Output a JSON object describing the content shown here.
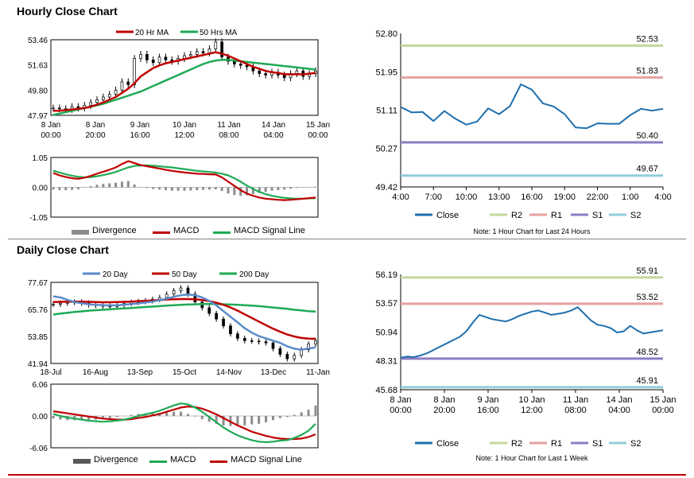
{
  "sections": {
    "hourly_title": "Hourly Close Chart",
    "daily_title": "Daily Close Chart"
  },
  "colors": {
    "close": "#1f6fad",
    "ma_red": "#c00000",
    "ma_green": "#1faa55",
    "ma_blue": "#5b8bc9",
    "r2": "#c4d79b",
    "r1": "#e6a1a1",
    "s1": "#8e7cc3",
    "s2": "#92cddc",
    "divergence": "#8c8c8c",
    "candle": "#000000"
  },
  "chart_data": [
    {
      "id": "hourly_price",
      "type": "line",
      "title": "",
      "legend": [
        "20 Hr MA",
        "50 Hrs MA"
      ],
      "yticks": [
        "53.46",
        "51.63",
        "49.80",
        "47.97"
      ],
      "ylim": [
        47.97,
        53.46
      ],
      "xticks": [
        [
          "8 Jan",
          "00:00"
        ],
        [
          "8 Jan",
          "20:00"
        ],
        [
          "9 Jan",
          "16:00"
        ],
        [
          "10 Jan",
          "12:00"
        ],
        [
          "11 Jan",
          "08:00"
        ],
        [
          "14 Jan",
          "04:00"
        ],
        [
          "15 Jan",
          "00:00"
        ]
      ],
      "price": [
        48.5,
        48.45,
        48.4,
        48.6,
        48.5,
        48.7,
        48.9,
        49.1,
        49.3,
        49.5,
        49.8,
        50.4,
        50.2,
        52.1,
        52.4,
        52.0,
        51.8,
        52.2,
        52.0,
        51.9,
        52.1,
        52.3,
        52.4,
        52.6,
        52.5,
        52.8,
        53.3,
        52.2,
        51.9,
        51.7,
        51.6,
        51.5,
        51.2,
        51.0,
        50.9,
        51.1,
        50.9,
        50.7,
        51.0,
        51.2,
        50.8,
        51.0,
        51.2
      ],
      "series": [
        {
          "name": "20 Hr MA",
          "values": [
            48.3,
            48.3,
            48.35,
            48.4,
            48.45,
            48.5,
            48.6,
            48.75,
            48.9,
            49.1,
            49.3,
            49.6,
            49.9,
            50.3,
            50.8,
            51.1,
            51.4,
            51.6,
            51.75,
            51.85,
            51.95,
            52.05,
            52.15,
            52.25,
            52.35,
            52.45,
            52.55,
            52.45,
            52.3,
            52.1,
            51.9,
            51.7,
            51.5,
            51.35,
            51.2,
            51.1,
            51.05,
            50.95,
            50.95,
            50.95,
            50.95,
            51.0,
            51.05
          ]
        },
        {
          "name": "50 Hrs MA",
          "values": [
            48.0,
            48.1,
            48.2,
            48.3,
            48.4,
            48.5,
            48.6,
            48.7,
            48.8,
            48.95,
            49.1,
            49.25,
            49.4,
            49.55,
            49.7,
            49.9,
            50.1,
            50.3,
            50.5,
            50.7,
            50.9,
            51.1,
            51.3,
            51.5,
            51.7,
            51.85,
            51.95,
            52.0,
            52.0,
            51.95,
            51.9,
            51.85,
            51.8,
            51.75,
            51.7,
            51.65,
            51.6,
            51.55,
            51.5,
            51.45,
            51.4,
            51.35,
            51.3
          ]
        }
      ]
    },
    {
      "id": "hourly_macd",
      "type": "line",
      "title": "",
      "legend": [
        "Divergence",
        "MACD",
        "MACD Signal Line"
      ],
      "yticks": [
        "1.05",
        "0.00",
        "-1.05"
      ],
      "ylim": [
        -1.05,
        1.05
      ],
      "series": [
        {
          "name": "MACD",
          "values": [
            0.5,
            0.42,
            0.36,
            0.32,
            0.3,
            0.34,
            0.4,
            0.48,
            0.55,
            0.62,
            0.7,
            0.82,
            0.92,
            0.85,
            0.78,
            0.74,
            0.7,
            0.66,
            0.62,
            0.58,
            0.55,
            0.52,
            0.5,
            0.48,
            0.47,
            0.46,
            0.45,
            0.35,
            0.2,
            0.05,
            -0.1,
            -0.22,
            -0.3,
            -0.36,
            -0.4,
            -0.42,
            -0.44,
            -0.45,
            -0.44,
            -0.42,
            -0.4,
            -0.38,
            -0.36
          ]
        },
        {
          "name": "MACD Signal Line",
          "values": [
            0.58,
            0.52,
            0.46,
            0.41,
            0.37,
            0.35,
            0.36,
            0.39,
            0.43,
            0.48,
            0.54,
            0.62,
            0.7,
            0.75,
            0.77,
            0.77,
            0.76,
            0.74,
            0.72,
            0.7,
            0.67,
            0.64,
            0.61,
            0.58,
            0.56,
            0.54,
            0.52,
            0.48,
            0.42,
            0.32,
            0.2,
            0.06,
            -0.06,
            -0.16,
            -0.24,
            -0.3,
            -0.34,
            -0.37,
            -0.39,
            -0.4,
            -0.4,
            -0.39,
            -0.38
          ]
        }
      ]
    },
    {
      "id": "hourly_levels",
      "type": "line",
      "title": "",
      "legend": [
        "Close",
        "R2",
        "R1",
        "S1",
        "S2"
      ],
      "note": "Note: 1 Hour Chart for Last 24 Hours",
      "yticks": [
        "52.80",
        "51.95",
        "51.11",
        "50.27",
        "49.42"
      ],
      "ylim": [
        49.42,
        52.8
      ],
      "xticks": [
        "4:00",
        "7:00",
        "10:00",
        "13:00",
        "16:00",
        "19:00",
        "22:00",
        "1:00",
        "4:00"
      ],
      "levels": [
        {
          "name": "R2",
          "value": 52.53,
          "label": "52.53"
        },
        {
          "name": "R1",
          "value": 51.83,
          "label": "51.83"
        },
        {
          "name": "S1",
          "value": 50.4,
          "label": "50.40"
        },
        {
          "name": "S2",
          "value": 49.67,
          "label": "49.67"
        }
      ],
      "close": [
        51.18,
        51.06,
        51.07,
        50.87,
        51.09,
        50.92,
        50.79,
        50.86,
        51.15,
        51.02,
        51.2,
        51.68,
        51.56,
        51.26,
        51.19,
        51.02,
        50.73,
        50.71,
        50.82,
        50.81,
        50.81,
        51.0,
        51.14,
        51.1,
        51.14
      ]
    },
    {
      "id": "daily_price",
      "type": "line",
      "title": "",
      "legend": [
        "20 Day",
        "50 Day",
        "200 Day"
      ],
      "yticks": [
        "77.67",
        "65.76",
        "53.85",
        "41.94"
      ],
      "ylim": [
        41.94,
        77.67
      ],
      "xticks": [
        "18-Jul",
        "16-Aug",
        "13-Sep",
        "15-Oct",
        "14-Nov",
        "13-Dec",
        "11-Jan"
      ],
      "price": [
        68.0,
        68.5,
        68.8,
        69.0,
        68.5,
        67.8,
        67.5,
        67.2,
        67.0,
        67.6,
        68.4,
        68.9,
        69.2,
        69.6,
        70.2,
        71.0,
        72.5,
        74.0,
        75.2,
        72.5,
        69.0,
        66.5,
        64.0,
        61.5,
        58.5,
        55.0,
        53.0,
        52.0,
        51.8,
        51.5,
        51.0,
        48.5,
        46.0,
        44.0,
        45.5,
        48.0,
        50.5,
        52.0
      ],
      "series": [
        {
          "name": "20 Day",
          "values": [
            71.5,
            71.0,
            70.0,
            69.0,
            68.5,
            68.0,
            67.8,
            67.6,
            67.5,
            67.6,
            67.8,
            68.1,
            68.4,
            68.8,
            69.2,
            69.8,
            70.5,
            71.3,
            72.0,
            72.3,
            72.0,
            71.0,
            69.5,
            67.5,
            65.0,
            62.5,
            60.0,
            57.5,
            55.5,
            54.0,
            53.0,
            52.0,
            51.0,
            49.5,
            48.5,
            48.0,
            48.5,
            49.0
          ]
        },
        {
          "name": "50 Day",
          "values": [
            69.0,
            69.1,
            69.2,
            69.2,
            69.2,
            69.1,
            69.0,
            68.9,
            68.9,
            69.0,
            69.1,
            69.2,
            69.4,
            69.5,
            69.7,
            69.9,
            70.1,
            70.2,
            70.3,
            70.3,
            70.2,
            69.9,
            69.4,
            68.7,
            67.8,
            66.6,
            65.2,
            63.6,
            62.0,
            60.4,
            58.8,
            57.3,
            55.9,
            54.7,
            53.8,
            53.2,
            52.9,
            52.8
          ]
        },
        {
          "name": "200 Day",
          "values": [
            63.5,
            63.9,
            64.3,
            64.6,
            64.9,
            65.2,
            65.4,
            65.6,
            65.8,
            66.0,
            66.2,
            66.4,
            66.6,
            66.8,
            67.0,
            67.2,
            67.4,
            67.6,
            67.8,
            67.9,
            68.0,
            68.1,
            68.1,
            68.1,
            68.0,
            67.9,
            67.8,
            67.6,
            67.4,
            67.2,
            66.9,
            66.6,
            66.3,
            66.0,
            65.6,
            65.3,
            65.0,
            64.8
          ]
        }
      ]
    },
    {
      "id": "daily_macd",
      "type": "line",
      "title": "",
      "legend": [
        "Divergence",
        "MACD",
        "MACD Signal Line"
      ],
      "yticks": [
        "6.06",
        "0.00",
        "-6.06"
      ],
      "ylim": [
        -6.06,
        6.06
      ],
      "series": [
        {
          "name": "MACD",
          "values": [
            0.4,
            0.0,
            -0.3,
            -0.5,
            -0.7,
            -0.9,
            -1.0,
            -1.1,
            -1.0,
            -0.9,
            -0.7,
            -0.4,
            0.0,
            0.3,
            0.6,
            1.0,
            1.5,
            2.0,
            2.4,
            2.2,
            1.6,
            0.8,
            -0.2,
            -1.2,
            -2.2,
            -3.0,
            -3.7,
            -4.2,
            -4.6,
            -4.9,
            -5.0,
            -4.9,
            -4.7,
            -4.6,
            -4.2,
            -3.6,
            -2.8,
            -1.5
          ]
        },
        {
          "name": "MACD Signal Line",
          "values": [
            0.9,
            0.7,
            0.5,
            0.3,
            0.1,
            -0.1,
            -0.3,
            -0.5,
            -0.6,
            -0.7,
            -0.7,
            -0.6,
            -0.4,
            -0.2,
            0.1,
            0.4,
            0.8,
            1.2,
            1.6,
            1.8,
            1.7,
            1.4,
            0.9,
            0.3,
            -0.4,
            -1.1,
            -1.8,
            -2.4,
            -3.0,
            -3.4,
            -3.8,
            -4.1,
            -4.3,
            -4.4,
            -4.4,
            -4.3,
            -4.0,
            -3.5
          ]
        }
      ]
    },
    {
      "id": "daily_levels",
      "type": "line",
      "title": "",
      "legend": [
        "Close",
        "R2",
        "R1",
        "S1",
        "S2"
      ],
      "note": "Note: 1 Hour Chart for Last 1 Week",
      "yticks": [
        "56.19",
        "53.57",
        "50.94",
        "48.31",
        "45.68"
      ],
      "ylim": [
        45.68,
        56.19
      ],
      "xticks": [
        [
          "8 Jan",
          "00:00"
        ],
        [
          "8 Jan",
          "20:00"
        ],
        [
          "9 Jan",
          "16:00"
        ],
        [
          "10 Jan",
          "12:00"
        ],
        [
          "11 Jan",
          "08:00"
        ],
        [
          "14 Jan",
          "04:00"
        ],
        [
          "15 Jan",
          "00:00"
        ]
      ],
      "levels": [
        {
          "name": "R2",
          "value": 55.91,
          "label": "55.91"
        },
        {
          "name": "R1",
          "value": 53.52,
          "label": "53.52"
        },
        {
          "name": "S1",
          "value": 48.52,
          "label": "48.52"
        },
        {
          "name": "S2",
          "value": 45.91,
          "label": "45.91"
        }
      ],
      "close": [
        48.6,
        48.7,
        48.65,
        48.8,
        49.0,
        49.3,
        49.6,
        49.9,
        50.2,
        50.5,
        51.0,
        51.8,
        52.5,
        52.3,
        52.1,
        52.0,
        51.9,
        52.1,
        52.4,
        52.6,
        52.8,
        52.9,
        52.7,
        52.5,
        52.6,
        52.7,
        52.9,
        53.2,
        52.6,
        52.0,
        51.6,
        51.5,
        51.3,
        50.9,
        51.0,
        51.5,
        51.1,
        50.8,
        50.9,
        51.0,
        51.1
      ]
    }
  ]
}
